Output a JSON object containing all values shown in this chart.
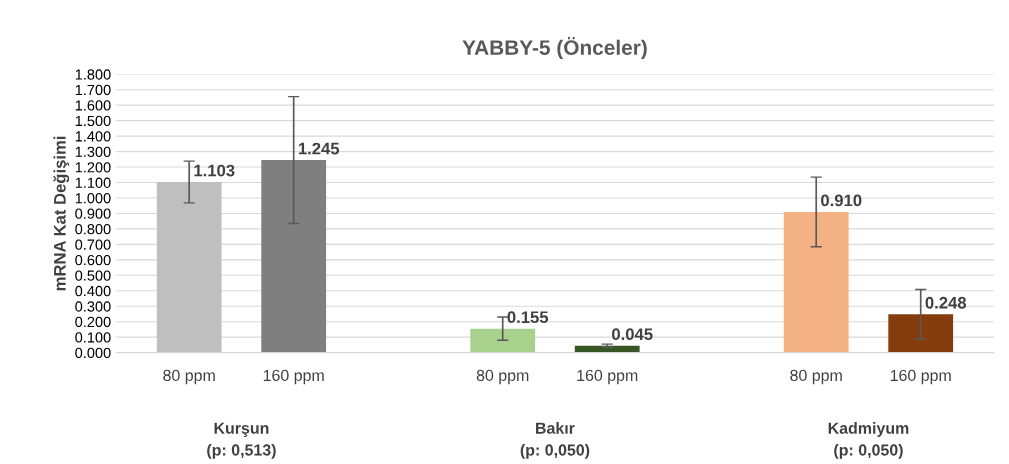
{
  "chart_data": {
    "type": "bar",
    "title": "YABBY-5 (Önceler)",
    "ylabel": "mRNA Kat Değişimi",
    "categories": [
      "80 ppm",
      "160 ppm",
      "80 ppm",
      "160 ppm",
      "80 ppm",
      "160 ppm"
    ],
    "values": [
      1.103,
      1.245,
      0.155,
      0.045,
      0.91,
      0.248
    ],
    "value_labels": [
      "1.103",
      "1.245",
      "0.155",
      "0.045",
      "0.910",
      "0.248"
    ],
    "errors": [
      0.135,
      0.41,
      0.075,
      0.01,
      0.225,
      0.16
    ],
    "colors": [
      "#bfbfbf",
      "#7f7f7f",
      "#a9d18e",
      "#375623",
      "#f4b183",
      "#843c0c"
    ],
    "annotations": [
      "Kurşun\n(p: 0,513)",
      "Bakır\n(p: 0,050)",
      "Kadmiyum\n(p: 0,050)"
    ],
    "ylim": [
      0,
      1.8
    ],
    "yticks": [
      {
        "value": 0,
        "label": "0.000"
      },
      {
        "value": 0.1,
        "label": "0.100"
      },
      {
        "value": 0.2,
        "label": "0.200"
      },
      {
        "value": 0.3,
        "label": "0.300"
      },
      {
        "value": 0.4,
        "label": "0.400"
      },
      {
        "value": 0.5,
        "label": "0.500"
      },
      {
        "value": 0.6,
        "label": "0.600"
      },
      {
        "value": 0.7,
        "label": "0.700"
      },
      {
        "value": 0.8,
        "label": "0.800"
      },
      {
        "value": 0.9,
        "label": "0.900"
      },
      {
        "value": 1.0,
        "label": "1.000"
      },
      {
        "value": 1.1,
        "label": "1.100"
      },
      {
        "value": 1.2,
        "label": "1.200"
      },
      {
        "value": 1.3,
        "label": "1.300"
      },
      {
        "value": 1.4,
        "label": "1.400"
      },
      {
        "value": 1.5,
        "label": "1.500"
      },
      {
        "value": 1.6,
        "label": "1.600"
      },
      {
        "value": 1.7,
        "label": "1.700"
      },
      {
        "value": 1.8,
        "label": "1.800"
      }
    ],
    "grid": "y",
    "legend": false
  }
}
